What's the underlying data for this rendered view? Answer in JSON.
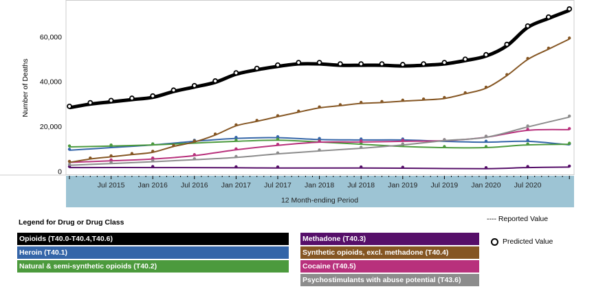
{
  "chart_data": {
    "type": "line",
    "ylabel": "Number of Deaths",
    "xlabel": "12 Month-ending Period",
    "ylim": [
      0,
      72000
    ],
    "yticks": [
      "0",
      "20,000",
      "40,000",
      "60,000"
    ],
    "ytick_values": [
      0,
      20000,
      40000,
      60000
    ],
    "xticks": [
      "Jul 2015",
      "Jan 2016",
      "Jul 2016",
      "Jan 2017",
      "Jul 2017",
      "Jan 2018",
      "Jul 2018",
      "Jan 2019",
      "Jul 2019",
      "Jan 2020",
      "Jul 2020"
    ],
    "xtick_dates": [
      "2015-07",
      "2016-01",
      "2016-07",
      "2017-01",
      "2017-07",
      "2018-01",
      "2018-07",
      "2019-01",
      "2019-07",
      "2020-01",
      "2020-07"
    ],
    "xrange": [
      "2015-01",
      "2021-01"
    ],
    "legend_title": "Legend for Drug or Drug Class",
    "reported_label": "---- Reported Value",
    "predicted_label": "Predicted Value",
    "series": [
      {
        "name": "Opioids (T40.0-T40.4,T40.6)",
        "color": "#000000",
        "marker": "ring",
        "x": [
          "2015-01",
          "2015-04",
          "2015-07",
          "2015-10",
          "2016-01",
          "2016-04",
          "2016-07",
          "2016-10",
          "2017-01",
          "2017-04",
          "2017-07",
          "2017-10",
          "2018-01",
          "2018-04",
          "2018-07",
          "2018-10",
          "2019-01",
          "2019-04",
          "2019-07",
          "2019-10",
          "2020-01",
          "2020-04",
          "2020-07",
          "2020-10",
          "2021-01"
        ],
        "y": [
          28300,
          29900,
          30900,
          31900,
          32900,
          35500,
          37500,
          39600,
          43200,
          45200,
          46700,
          47800,
          47800,
          47200,
          47200,
          47200,
          46900,
          47200,
          47800,
          49300,
          51300,
          55900,
          64100,
          68100,
          71700
        ]
      },
      {
        "name": "Synthetic opioids, excl. methadone (T40.4)",
        "color": "#855623",
        "marker": "dot",
        "x": [
          "2015-01",
          "2015-04",
          "2015-07",
          "2015-10",
          "2016-01",
          "2016-04",
          "2016-07",
          "2016-10",
          "2017-01",
          "2017-04",
          "2017-07",
          "2017-10",
          "2018-01",
          "2018-04",
          "2018-07",
          "2018-10",
          "2019-01",
          "2019-04",
          "2019-07",
          "2019-10",
          "2020-01",
          "2020-04",
          "2020-07",
          "2020-10",
          "2021-01"
        ],
        "y": [
          3900,
          5400,
          6400,
          7400,
          8400,
          11000,
          13000,
          16100,
          20200,
          22200,
          24300,
          26300,
          28200,
          29200,
          30200,
          30600,
          31200,
          31700,
          32400,
          34500,
          37000,
          42600,
          49800,
          54400,
          58900
        ]
      },
      {
        "name": "Psychostimulants with abuse potential (T43.6)",
        "color": "#8c8c8c",
        "marker": "dot",
        "x": [
          "2015-01",
          "2015-07",
          "2016-01",
          "2016-07",
          "2017-01",
          "2017-07",
          "2018-01",
          "2018-07",
          "2019-01",
          "2019-07",
          "2020-01",
          "2020-07",
          "2021-01"
        ],
        "y": [
          2600,
          3400,
          4200,
          5100,
          6100,
          7700,
          9000,
          10200,
          11700,
          13600,
          15100,
          19700,
          24100
        ]
      },
      {
        "name": "Cocaine (T40.5)",
        "color": "#b8317c",
        "marker": "dot",
        "x": [
          "2015-01",
          "2015-07",
          "2016-01",
          "2016-07",
          "2017-01",
          "2017-07",
          "2018-01",
          "2018-07",
          "2019-01",
          "2019-07",
          "2020-01",
          "2020-07",
          "2021-01"
        ],
        "y": [
          3900,
          4600,
          5400,
          6900,
          9500,
          11500,
          12900,
          13000,
          13300,
          13600,
          15100,
          18200,
          18500
        ]
      },
      {
        "name": "Natural & semi-synthetic opioids (T40.2)",
        "color": "#4c9a3d",
        "marker": "dot",
        "x": [
          "2015-01",
          "2015-07",
          "2016-01",
          "2016-07",
          "2017-01",
          "2017-07",
          "2018-01",
          "2018-07",
          "2019-01",
          "2019-07",
          "2020-01",
          "2020-07",
          "2021-01"
        ],
        "y": [
          10800,
          11200,
          11700,
          12500,
          13300,
          13800,
          13000,
          12000,
          11000,
          10500,
          10500,
          11700,
          12000
        ]
      },
      {
        "name": "Heroin (T40.1)",
        "color": "#3465a8",
        "marker": "dot",
        "x": [
          "2015-01",
          "2015-07",
          "2016-01",
          "2016-07",
          "2017-01",
          "2017-07",
          "2018-01",
          "2018-07",
          "2019-01",
          "2019-07",
          "2020-01",
          "2020-07",
          "2021-01"
        ],
        "y": [
          9300,
          10500,
          11700,
          13300,
          14600,
          14900,
          14100,
          13900,
          13900,
          13300,
          12900,
          13300,
          11700
        ]
      },
      {
        "name": "Methadone (T40.3)",
        "color": "#560f69",
        "marker": "dot",
        "x": [
          "2015-01",
          "2016-01",
          "2017-01",
          "2017-07",
          "2018-07",
          "2019-01",
          "2020-01",
          "2020-07",
          "2021-01"
        ],
        "y": [
          1600,
          1600,
          1500,
          1400,
          1400,
          1300,
          1100,
          1600,
          1800
        ]
      }
    ],
    "legend_left": [
      0,
      5,
      4
    ],
    "legend_right": [
      6,
      1,
      3,
      2
    ]
  }
}
